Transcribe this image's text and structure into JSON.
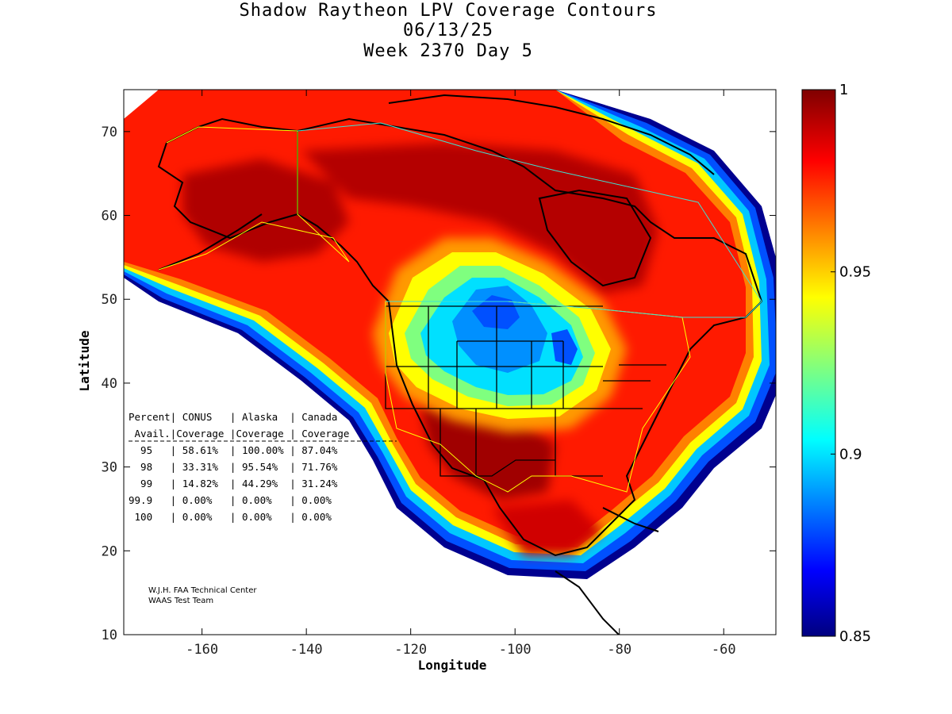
{
  "title": {
    "line1": "Shadow Raytheon LPV Coverage Contours",
    "line2": "06/13/25",
    "line3": "Week 2370 Day 5"
  },
  "axes": {
    "xlabel": "Longitude",
    "ylabel": "Latitude",
    "xlim": [
      -175,
      -50
    ],
    "ylim": [
      10,
      75
    ],
    "xticks": [
      "-160",
      "-140",
      "-120",
      "-100",
      "-80",
      "-60"
    ],
    "xtick_values": [
      -160,
      -140,
      -120,
      -100,
      -80,
      -60
    ],
    "yticks": [
      "10",
      "20",
      "30",
      "40",
      "50",
      "60",
      "70"
    ],
    "ytick_values": [
      10,
      20,
      30,
      40,
      50,
      60,
      70
    ]
  },
  "colorbar": {
    "range": [
      0.85,
      1
    ],
    "ticks": [
      "1",
      "0.95",
      "0.9",
      "0.85"
    ],
    "tick_values": [
      1,
      0.95,
      0.9,
      0.85
    ],
    "colormap": "jet"
  },
  "stats_table": {
    "header1": "Percent| CONUS   | Alaska  | Canada",
    "header2": " Avail.|Coverage |Coverage | Coverage",
    "rows": [
      "  95   | 58.61%  | 100.00% | 87.04%",
      "  98   | 33.31%  | 95.54%  | 71.76%",
      "  99   | 14.82%  | 44.29%  | 31.24%",
      "99.9   | 0.00%   | 0.00%   | 0.00%",
      " 100   | 0.00%   | 0.00%   | 0.00%"
    ]
  },
  "credit": {
    "line1": "W.J.H. FAA Technical Center",
    "line2": "WAAS Test Team"
  }
}
